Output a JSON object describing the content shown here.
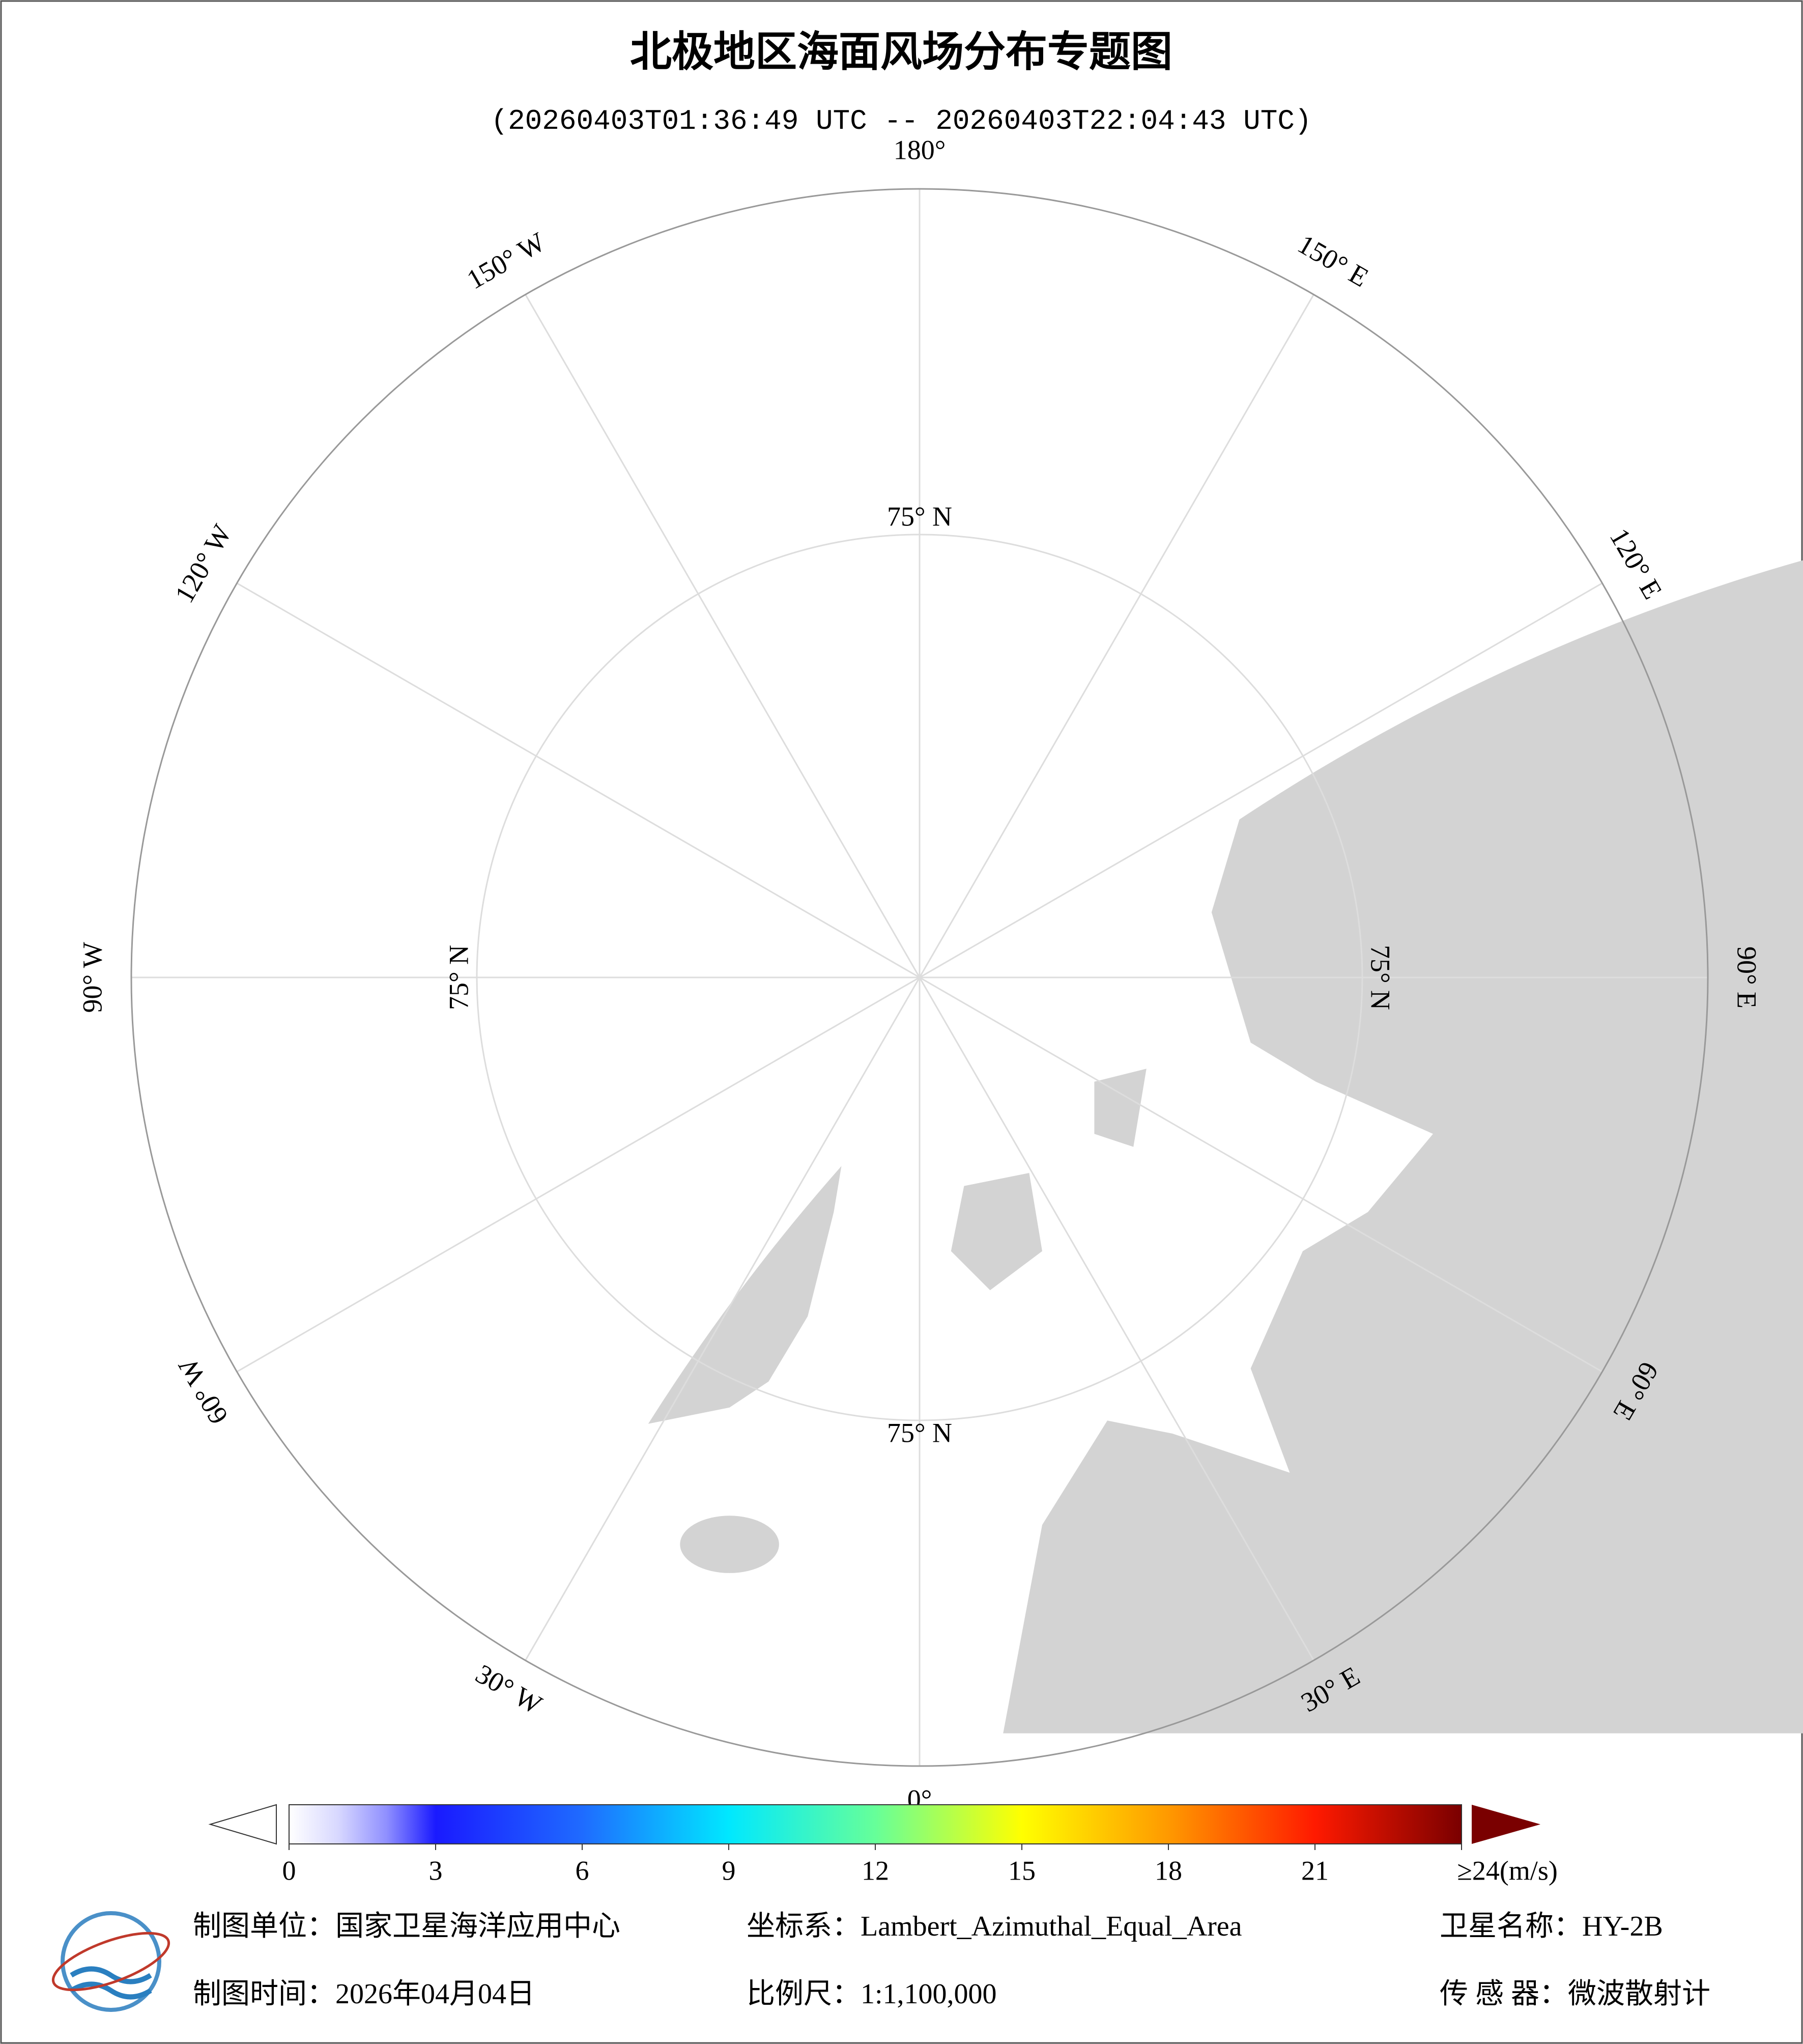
{
  "header": {
    "title": "北极地区海面风场分布专题图",
    "subtitle": "(20260403T01:36:49 UTC -- 20260403T22:04:43 UTC)"
  },
  "map": {
    "projection": "Lambert_Azimuthal_Equal_Area",
    "land_color": "#d3d3d3",
    "ocean_color": "#ffffff",
    "graticule_color": "#dddddd",
    "meridians": [
      {
        "lon": 180,
        "label": "180°"
      },
      {
        "lon": -150,
        "label": "150° W"
      },
      {
        "lon": -120,
        "label": "120° W"
      },
      {
        "lon": -90,
        "label": "90° W"
      },
      {
        "lon": -60,
        "label": "60° W"
      },
      {
        "lon": -30,
        "label": "30° W"
      },
      {
        "lon": 0,
        "label": "0°"
      },
      {
        "lon": 30,
        "label": "30° E"
      },
      {
        "lon": 60,
        "label": "60° E"
      },
      {
        "lon": 90,
        "label": "90° E"
      },
      {
        "lon": 120,
        "label": "120° E"
      },
      {
        "lon": 150,
        "label": "150° E"
      }
    ],
    "parallel": {
      "lat": 75,
      "label": "75° N"
    }
  },
  "colorbar": {
    "lim": [
      0,
      24
    ],
    "ticks": [
      0,
      3,
      6,
      9,
      12,
      15,
      18,
      21,
      {
        "value": 24,
        "label": "≥24(m/s)"
      }
    ],
    "colormap": [
      {
        "value": 0,
        "color": "#ffffff"
      },
      {
        "value": 1,
        "color": "#d8d8ff"
      },
      {
        "value": 2,
        "color": "#8f8fff"
      },
      {
        "value": 3,
        "color": "#1a1aff"
      },
      {
        "value": 6,
        "color": "#1f6bff"
      },
      {
        "value": 9,
        "color": "#00e8ff"
      },
      {
        "value": 12,
        "color": "#66ff99"
      },
      {
        "value": 15,
        "color": "#ffff00"
      },
      {
        "value": 18,
        "color": "#ff9900"
      },
      {
        "value": 21,
        "color": "#ff1a00"
      },
      {
        "value": 24,
        "color": "#7a0000"
      }
    ]
  },
  "footer": {
    "unit": "制图单位：国家卫星海洋应用中心",
    "crs": "坐标系：Lambert_Azimuthal_Equal_Area",
    "satellite": "卫星名称：HY-2B",
    "date": "制图时间：2026年04月04日",
    "scale": "比例尺：1:1,100,000",
    "sensor": "传 感 器：微波散射计"
  }
}
